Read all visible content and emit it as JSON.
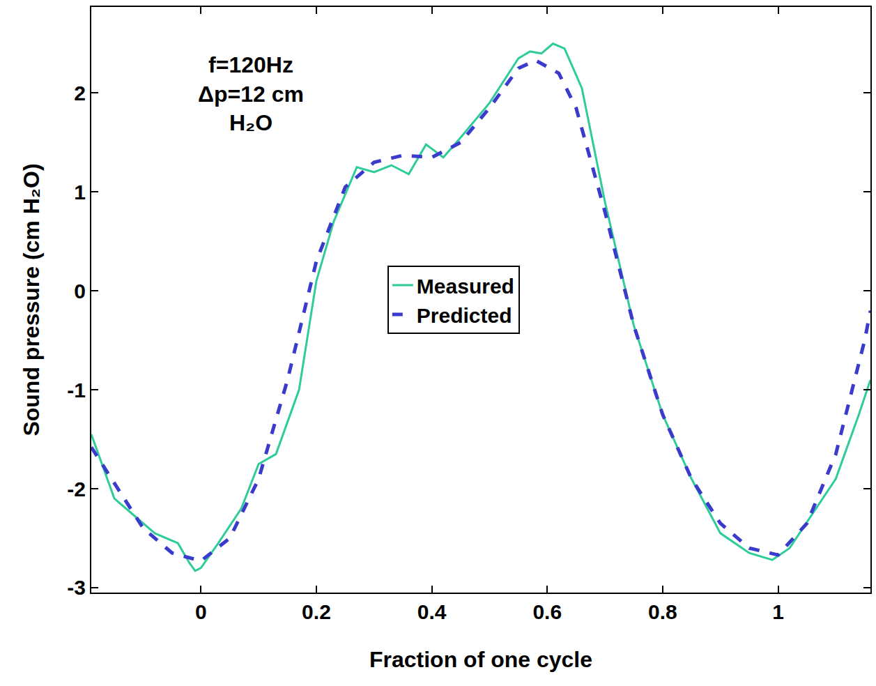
{
  "chart_data": {
    "type": "line",
    "x_label": "Fraction of one cycle",
    "y_label": "Sound pressure (cm H₂O)",
    "annotation": [
      "f=120Hz",
      "Δp=12 cm",
      "H₂O"
    ],
    "xlim": [
      -0.19,
      1.16
    ],
    "ylim": [
      -3.05,
      2.87
    ],
    "xticks": [
      0,
      0.2,
      0.4,
      0.6,
      0.8,
      1
    ],
    "yticks": [
      -3,
      -2,
      -1,
      0,
      1,
      2
    ],
    "grid": false,
    "legend": "center",
    "series": [
      {
        "name": "Measured",
        "color": "#2ecc9a",
        "line_style": "solid",
        "x": [
          -0.19,
          -0.15,
          -0.12,
          -0.08,
          -0.04,
          -0.02,
          -0.01,
          0.0,
          0.03,
          0.07,
          0.1,
          0.13,
          0.17,
          0.2,
          0.23,
          0.27,
          0.3,
          0.33,
          0.36,
          0.39,
          0.42,
          0.45,
          0.5,
          0.55,
          0.57,
          0.59,
          0.61,
          0.63,
          0.66,
          0.7,
          0.75,
          0.8,
          0.85,
          0.9,
          0.95,
          0.99,
          1.02,
          1.06,
          1.1,
          1.14,
          1.16
        ],
        "values": [
          -1.45,
          -2.1,
          -2.25,
          -2.45,
          -2.55,
          -2.75,
          -2.83,
          -2.8,
          -2.55,
          -2.2,
          -1.75,
          -1.65,
          -1.0,
          0.1,
          0.7,
          1.25,
          1.2,
          1.27,
          1.18,
          1.48,
          1.35,
          1.55,
          1.9,
          2.35,
          2.42,
          2.4,
          2.5,
          2.45,
          2.05,
          0.9,
          -0.35,
          -1.25,
          -1.9,
          -2.45,
          -2.65,
          -2.72,
          -2.6,
          -2.25,
          -1.9,
          -1.25,
          -0.9
        ]
      },
      {
        "name": "Predicted",
        "color": "#3a3acc",
        "line_style": "dash",
        "x": [
          -0.19,
          -0.15,
          -0.1,
          -0.05,
          0.0,
          0.05,
          0.1,
          0.15,
          0.2,
          0.25,
          0.3,
          0.35,
          0.4,
          0.45,
          0.5,
          0.55,
          0.58,
          0.62,
          0.65,
          0.7,
          0.75,
          0.8,
          0.85,
          0.9,
          0.95,
          1.0,
          1.05,
          1.1,
          1.15,
          1.16
        ],
        "values": [
          -1.58,
          -1.95,
          -2.4,
          -2.65,
          -2.73,
          -2.5,
          -1.9,
          -0.9,
          0.3,
          1.05,
          1.3,
          1.37,
          1.35,
          1.5,
          1.85,
          2.25,
          2.33,
          2.2,
          1.85,
          0.8,
          -0.35,
          -1.25,
          -1.9,
          -2.35,
          -2.6,
          -2.67,
          -2.35,
          -1.65,
          -0.5,
          -0.2
        ]
      }
    ]
  }
}
